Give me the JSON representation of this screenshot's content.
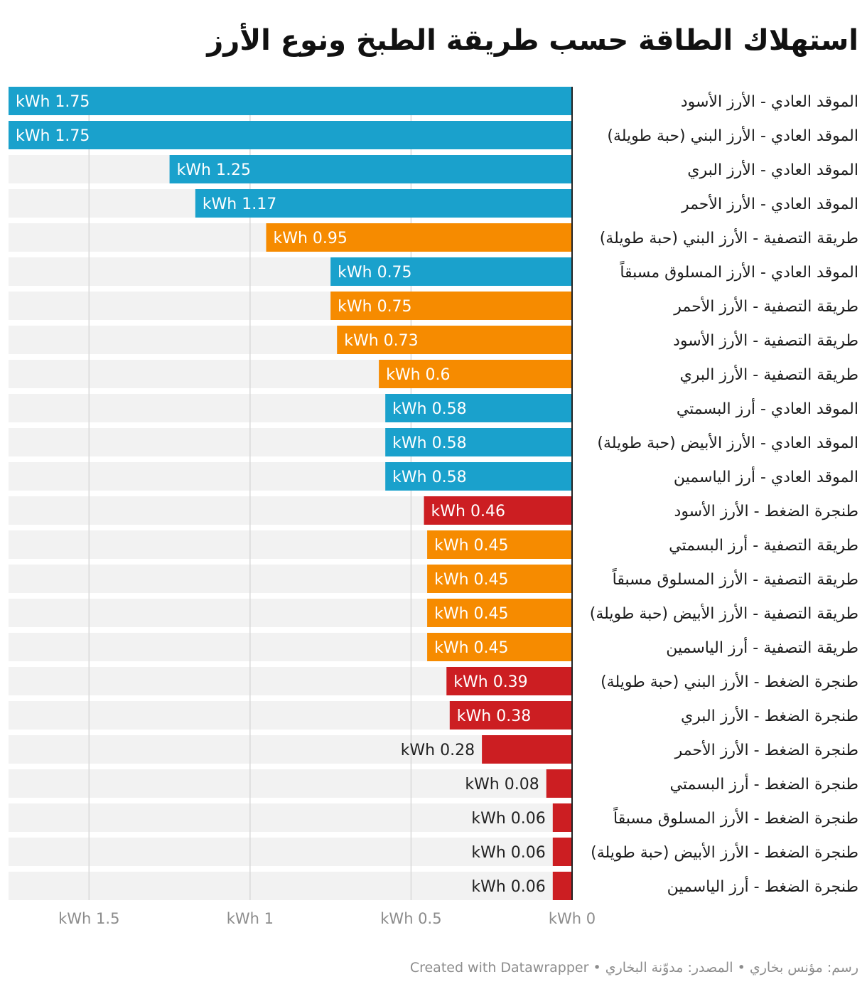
{
  "title": "استهلاك الطاقة حسب طريقة الطبخ ونوع الأرز",
  "footer": {
    "credit": "رسم: مؤنس بخاري",
    "separator": " • ",
    "source": "المصدر: مدوّنة البخاري",
    "created_with": "Created with Datawrapper"
  },
  "legend_colors": {
    "الموقد العادي": "#1aa1cc",
    "طريقة التصفية": "#f68b00",
    "طنجرة الضغط": "#cc1e22"
  },
  "chart_data": {
    "type": "bar",
    "orientation": "horizontal",
    "direction": "right-to-left",
    "title": "استهلاك الطاقة حسب طريقة الطبخ ونوع الأرز",
    "unit_prefix": "kWh ",
    "xlim": [
      0,
      1.75
    ],
    "xticks": [
      {
        "value": 0,
        "label": "kWh 0"
      },
      {
        "value": 0.5,
        "label": "kWh 0.5"
      },
      {
        "value": 1,
        "label": "kWh 1"
      },
      {
        "value": 1.5,
        "label": "kWh 1.5"
      }
    ],
    "grid": true,
    "bars": [
      {
        "label": "الموقد العادي - الأرز الأسود",
        "value": 1.75,
        "value_label": "kWh 1.75",
        "method": "الموقد العادي"
      },
      {
        "label": "الموقد العادي - الأرز البني (حبة طويلة)",
        "value": 1.75,
        "value_label": "kWh 1.75",
        "method": "الموقد العادي"
      },
      {
        "label": "الموقد العادي - الأرز البري",
        "value": 1.25,
        "value_label": "kWh 1.25",
        "method": "الموقد العادي"
      },
      {
        "label": "الموقد العادي - الأرز الأحمر",
        "value": 1.17,
        "value_label": "kWh 1.17",
        "method": "الموقد العادي"
      },
      {
        "label": "طريقة التصفية - الأرز البني (حبة طويلة)",
        "value": 0.95,
        "value_label": "kWh 0.95",
        "method": "طريقة التصفية"
      },
      {
        "label": "الموقد العادي - الأرز المسلوق مسبقاً",
        "value": 0.75,
        "value_label": "kWh 0.75",
        "method": "الموقد العادي"
      },
      {
        "label": "طريقة التصفية - الأرز الأحمر",
        "value": 0.75,
        "value_label": "kWh 0.75",
        "method": "طريقة التصفية"
      },
      {
        "label": "طريقة التصفية - الأرز الأسود",
        "value": 0.73,
        "value_label": "kWh 0.73",
        "method": "طريقة التصفية"
      },
      {
        "label": "طريقة التصفية - الأرز البري",
        "value": 0.6,
        "value_label": "kWh 0.6",
        "method": "طريقة التصفية"
      },
      {
        "label": "الموقد العادي - أرز البسمتي",
        "value": 0.58,
        "value_label": "kWh 0.58",
        "method": "الموقد العادي"
      },
      {
        "label": "الموقد العادي - الأرز الأبيض (حبة طويلة)",
        "value": 0.58,
        "value_label": "kWh 0.58",
        "method": "الموقد العادي"
      },
      {
        "label": "الموقد العادي - أرز الياسمين",
        "value": 0.58,
        "value_label": "kWh 0.58",
        "method": "الموقد العادي"
      },
      {
        "label": "طنجرة الضغط - الأرز الأسود",
        "value": 0.46,
        "value_label": "kWh 0.46",
        "method": "طنجرة الضغط"
      },
      {
        "label": "طريقة التصفية - أرز البسمتي",
        "value": 0.45,
        "value_label": "kWh 0.45",
        "method": "طريقة التصفية"
      },
      {
        "label": "طريقة التصفية - الأرز المسلوق مسبقاً",
        "value": 0.45,
        "value_label": "kWh 0.45",
        "method": "طريقة التصفية"
      },
      {
        "label": "طريقة التصفية - الأرز الأبيض (حبة طويلة)",
        "value": 0.45,
        "value_label": "kWh 0.45",
        "method": "طريقة التصفية"
      },
      {
        "label": "طريقة التصفية - أرز الياسمين",
        "value": 0.45,
        "value_label": "kWh 0.45",
        "method": "طريقة التصفية"
      },
      {
        "label": "طنجرة الضغط - الأرز البني (حبة طويلة)",
        "value": 0.39,
        "value_label": "kWh 0.39",
        "method": "طنجرة الضغط"
      },
      {
        "label": "طنجرة الضغط - الأرز البري",
        "value": 0.38,
        "value_label": "kWh 0.38",
        "method": "طنجرة الضغط"
      },
      {
        "label": "طنجرة الضغط - الأرز الأحمر",
        "value": 0.28,
        "value_label": "kWh 0.28",
        "method": "طنجرة الضغط"
      },
      {
        "label": "طنجرة الضغط - أرز البسمتي",
        "value": 0.08,
        "value_label": "kWh 0.08",
        "method": "طنجرة الضغط"
      },
      {
        "label": "طنجرة الضغط - الأرز المسلوق مسبقاً",
        "value": 0.06,
        "value_label": "kWh 0.06",
        "method": "طنجرة الضغط"
      },
      {
        "label": "طنجرة الضغط - الأرز الأبيض (حبة طويلة)",
        "value": 0.06,
        "value_label": "kWh 0.06",
        "method": "طنجرة الضغط"
      },
      {
        "label": "طنجرة الضغط - أرز الياسمين",
        "value": 0.06,
        "value_label": "kWh 0.06",
        "method": "طنجرة الضغط"
      }
    ]
  }
}
